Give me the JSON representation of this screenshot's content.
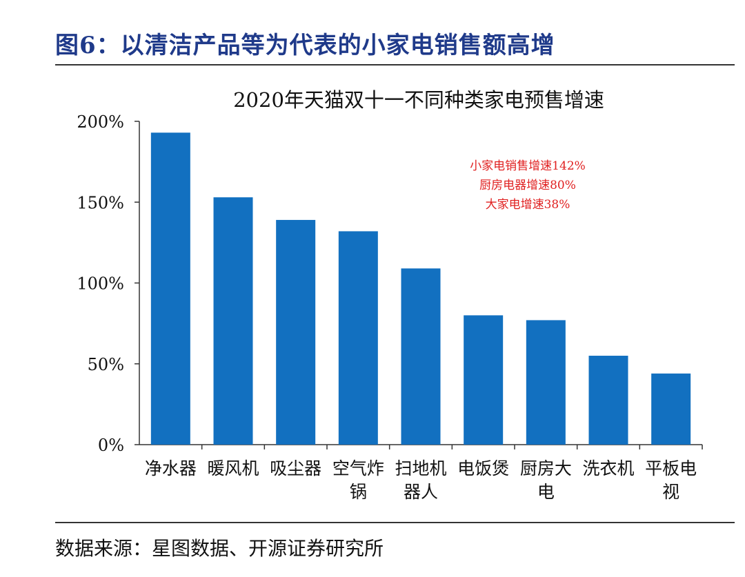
{
  "figure": {
    "title": "图6：以清洁产品等为代表的小家电销售额高增",
    "source": "数据来源：星图数据、开源证券研究所"
  },
  "annotations": [
    "小家电销售增速142%",
    "厨房电器增速80%",
    "大家电增速38%"
  ],
  "colors": {
    "bar": "#1270c0",
    "title": "#1f3a8a",
    "annotation": "#e02020"
  },
  "chart_data": {
    "type": "bar",
    "title": "2020年天猫双十一不同种类家电预售增速",
    "categories": [
      [
        "净水器"
      ],
      [
        "暖风机"
      ],
      [
        "吸尘器"
      ],
      [
        "空气炸",
        "锅"
      ],
      [
        "扫地机",
        "器人"
      ],
      [
        "电饭煲"
      ],
      [
        "厨房大",
        "电"
      ],
      [
        "洗衣机"
      ],
      [
        "平板电",
        "视"
      ]
    ],
    "values": [
      193,
      153,
      139,
      132,
      109,
      80,
      77,
      55,
      44
    ],
    "ylim": [
      0,
      200
    ],
    "yticks": [
      0,
      50,
      100,
      150,
      200
    ],
    "ytick_labels": [
      "0%",
      "50%",
      "100%",
      "150%",
      "200%"
    ],
    "xlabel": "",
    "ylabel": "",
    "grid": false,
    "legend": "none"
  }
}
